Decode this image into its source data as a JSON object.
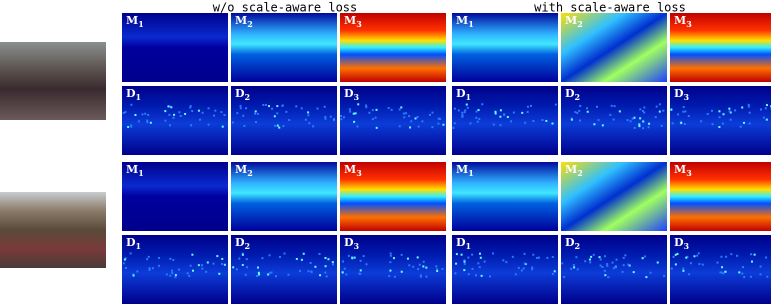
{
  "headers": [
    "w/o scale-aware loss",
    "with scale-aware loss"
  ],
  "rows": [
    {
      "groups": [
        {
          "panels": [
            {
              "letter": "M",
              "sub": "1"
            },
            {
              "letter": "M",
              "sub": "2"
            },
            {
              "letter": "M",
              "sub": "3"
            },
            {
              "letter": "D",
              "sub": "1"
            },
            {
              "letter": "D",
              "sub": "2"
            },
            {
              "letter": "D",
              "sub": "3"
            }
          ]
        },
        {
          "panels": [
            {
              "letter": "M",
              "sub": "1"
            },
            {
              "letter": "M",
              "sub": "2"
            },
            {
              "letter": "M",
              "sub": "3"
            },
            {
              "letter": "D",
              "sub": "1"
            },
            {
              "letter": "D",
              "sub": "2"
            },
            {
              "letter": "D",
              "sub": "3"
            }
          ]
        }
      ]
    },
    {
      "groups": [
        {
          "panels": [
            {
              "letter": "M",
              "sub": "1"
            },
            {
              "letter": "M",
              "sub": "2"
            },
            {
              "letter": "M",
              "sub": "3"
            },
            {
              "letter": "D",
              "sub": "1"
            },
            {
              "letter": "D",
              "sub": "2"
            },
            {
              "letter": "D",
              "sub": "3"
            }
          ]
        },
        {
          "panels": [
            {
              "letter": "M",
              "sub": "1"
            },
            {
              "letter": "M",
              "sub": "2"
            },
            {
              "letter": "M",
              "sub": "3"
            },
            {
              "letter": "D",
              "sub": "1"
            },
            {
              "letter": "D",
              "sub": "2"
            },
            {
              "letter": "D",
              "sub": "3"
            }
          ]
        }
      ]
    }
  ]
}
